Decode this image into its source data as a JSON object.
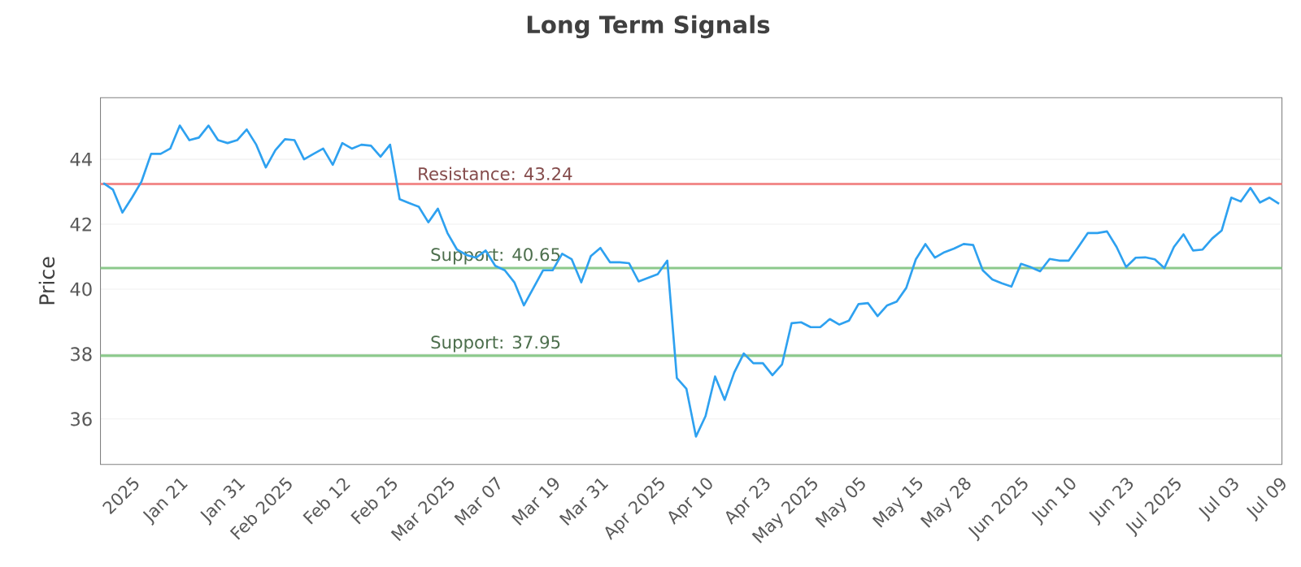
{
  "chart_data": {
    "type": "line",
    "title": "Long Term Signals",
    "ylabel": "Price",
    "categories": [
      null,
      null,
      null,
      "2025",
      null,
      null,
      null,
      null,
      "Jan 21",
      null,
      null,
      null,
      null,
      null,
      "Jan 31",
      null,
      null,
      null,
      null,
      "Feb 2025",
      null,
      null,
      null,
      null,
      null,
      "Feb 12",
      null,
      null,
      null,
      null,
      "Feb 25",
      null,
      null,
      null,
      null,
      null,
      "Mar 2025",
      null,
      null,
      null,
      null,
      "Mar 07",
      null,
      null,
      null,
      null,
      null,
      "Mar 19",
      null,
      null,
      null,
      null,
      "Mar 31",
      null,
      null,
      null,
      null,
      null,
      "Apr 2025",
      null,
      null,
      null,
      null,
      "Apr 10",
      null,
      null,
      null,
      null,
      null,
      "Apr 23",
      null,
      null,
      null,
      null,
      "May 2025",
      null,
      null,
      null,
      null,
      "May 05",
      null,
      null,
      null,
      null,
      null,
      "May 15",
      null,
      null,
      null,
      null,
      "May 28",
      null,
      null,
      null,
      null,
      null,
      "Jun 2025",
      null,
      null,
      null,
      null,
      "Jun 10",
      null,
      null,
      null,
      null,
      null,
      "Jun 23",
      null,
      null,
      null,
      null,
      "Jul 2025",
      null,
      null,
      null,
      null,
      null,
      "Jul 03",
      null,
      null,
      null,
      null,
      "Jul 09"
    ],
    "series": [
      {
        "color": "#2ea1f0",
        "values": [
          43.27,
          43.07,
          42.36,
          42.82,
          43.32,
          44.17,
          44.17,
          44.33,
          45.04,
          44.59,
          44.67,
          45.04,
          44.59,
          44.5,
          44.59,
          44.92,
          44.45,
          43.75,
          44.28,
          44.62,
          44.59,
          44.0,
          44.17,
          44.33,
          43.83,
          44.5,
          44.33,
          44.45,
          44.42,
          44.08,
          44.45,
          42.77,
          42.65,
          42.54,
          42.06,
          42.48,
          41.73,
          41.22,
          41.05,
          40.97,
          41.19,
          40.72,
          40.58,
          40.21,
          39.5,
          40.04,
          40.58,
          40.58,
          41.09,
          40.92,
          40.21,
          41.02,
          41.27,
          40.83,
          40.83,
          40.8,
          40.24,
          40.35,
          40.46,
          40.88,
          37.26,
          36.93,
          35.46,
          36.09,
          37.31,
          36.59,
          37.43,
          38.02,
          37.72,
          37.72,
          37.35,
          37.68,
          38.95,
          38.98,
          38.83,
          38.83,
          39.08,
          38.91,
          39.03,
          39.54,
          39.57,
          39.17,
          39.5,
          39.62,
          40.04,
          40.92,
          41.39,
          40.97,
          41.14,
          41.25,
          41.39,
          41.36,
          40.58,
          40.3,
          40.18,
          40.08,
          40.78,
          40.68,
          40.55,
          40.93,
          40.88,
          40.88,
          41.3,
          41.73,
          41.73,
          41.78,
          41.3,
          40.68,
          40.97,
          40.98,
          40.92,
          40.65,
          41.3,
          41.69,
          41.19,
          41.22,
          41.56,
          41.81,
          42.82,
          42.7,
          43.12,
          42.67,
          42.82,
          42.63
        ]
      }
    ],
    "ylim": [
      34.6,
      45.9
    ],
    "yticks": [
      36,
      38,
      40,
      42,
      44
    ],
    "grid": "y",
    "ref_lines": [
      {
        "axis": "y",
        "value": 43.24,
        "label": "Resistance: 43.24",
        "color": "#f28b8b"
      },
      {
        "axis": "y",
        "value": 40.65,
        "label": "Support: 40.65",
        "color": "#8cc98c"
      },
      {
        "axis": "y",
        "value": 37.95,
        "label": "Support: 37.95",
        "color": "#8cc98c"
      }
    ]
  }
}
